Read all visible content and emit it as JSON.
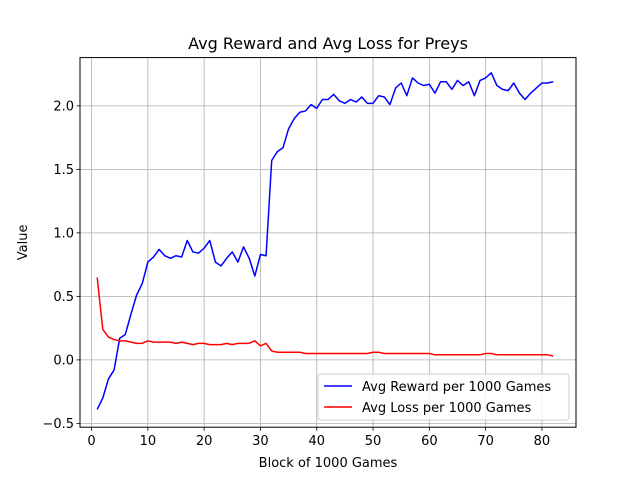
{
  "chart_data": {
    "type": "line",
    "title": "Avg Reward and Avg Loss for Preys",
    "xlabel": "Block of 1000 Games",
    "ylabel": "Value",
    "xlim": [
      -2.05,
      86.05
    ],
    "ylim": [
      -0.53,
      2.38
    ],
    "xticks": [
      0,
      10,
      20,
      30,
      40,
      50,
      60,
      70,
      80
    ],
    "yticks": [
      -0.5,
      0.0,
      0.5,
      1.0,
      1.5,
      2.0
    ],
    "ytick_labels": [
      "−0.5",
      "0.0",
      "0.5",
      "1.0",
      "1.5",
      "2.0"
    ],
    "grid": true,
    "legend_position": "lower-right",
    "x": [
      1,
      2,
      3,
      4,
      5,
      6,
      7,
      8,
      9,
      10,
      11,
      12,
      13,
      14,
      15,
      16,
      17,
      18,
      19,
      20,
      21,
      22,
      23,
      24,
      25,
      26,
      27,
      28,
      29,
      30,
      31,
      32,
      33,
      34,
      35,
      36,
      37,
      38,
      39,
      40,
      41,
      42,
      43,
      44,
      45,
      46,
      47,
      48,
      49,
      50,
      51,
      52,
      53,
      54,
      55,
      56,
      57,
      58,
      59,
      60,
      61,
      62,
      63,
      64,
      65,
      66,
      67,
      68,
      69,
      70,
      71,
      72,
      73,
      74,
      75,
      76,
      77,
      78,
      79,
      80,
      81,
      82
    ],
    "series": [
      {
        "name": "Avg Reward per 1000 Games",
        "color": "#0000ff",
        "values": [
          -0.39,
          -0.3,
          -0.15,
          -0.08,
          0.17,
          0.2,
          0.36,
          0.51,
          0.6,
          0.77,
          0.81,
          0.87,
          0.82,
          0.8,
          0.82,
          0.81,
          0.94,
          0.85,
          0.84,
          0.88,
          0.94,
          0.77,
          0.74,
          0.8,
          0.85,
          0.77,
          0.89,
          0.8,
          0.66,
          0.83,
          0.82,
          1.57,
          1.64,
          1.67,
          1.82,
          1.9,
          1.95,
          1.96,
          2.01,
          1.98,
          2.05,
          2.05,
          2.09,
          2.04,
          2.02,
          2.05,
          2.03,
          2.07,
          2.02,
          2.02,
          2.08,
          2.07,
          2.01,
          2.14,
          2.18,
          2.08,
          2.22,
          2.18,
          2.16,
          2.17,
          2.1,
          2.19,
          2.19,
          2.13,
          2.2,
          2.16,
          2.19,
          2.08,
          2.2,
          2.22,
          2.26,
          2.16,
          2.13,
          2.12,
          2.18,
          2.1,
          2.05,
          2.1,
          2.14,
          2.18,
          2.18,
          2.19
        ]
      },
      {
        "name": "Avg Loss per 1000 Games",
        "color": "#ff0000",
        "values": [
          0.65,
          0.24,
          0.18,
          0.16,
          0.15,
          0.15,
          0.14,
          0.13,
          0.13,
          0.15,
          0.14,
          0.14,
          0.14,
          0.14,
          0.13,
          0.14,
          0.13,
          0.12,
          0.13,
          0.13,
          0.12,
          0.12,
          0.12,
          0.13,
          0.12,
          0.13,
          0.13,
          0.13,
          0.15,
          0.11,
          0.13,
          0.07,
          0.06,
          0.06,
          0.06,
          0.06,
          0.06,
          0.05,
          0.05,
          0.05,
          0.05,
          0.05,
          0.05,
          0.05,
          0.05,
          0.05,
          0.05,
          0.05,
          0.05,
          0.06,
          0.06,
          0.05,
          0.05,
          0.05,
          0.05,
          0.05,
          0.05,
          0.05,
          0.05,
          0.05,
          0.04,
          0.04,
          0.04,
          0.04,
          0.04,
          0.04,
          0.04,
          0.04,
          0.04,
          0.05,
          0.05,
          0.04,
          0.04,
          0.04,
          0.04,
          0.04,
          0.04,
          0.04,
          0.04,
          0.04,
          0.04,
          0.03
        ]
      }
    ]
  }
}
